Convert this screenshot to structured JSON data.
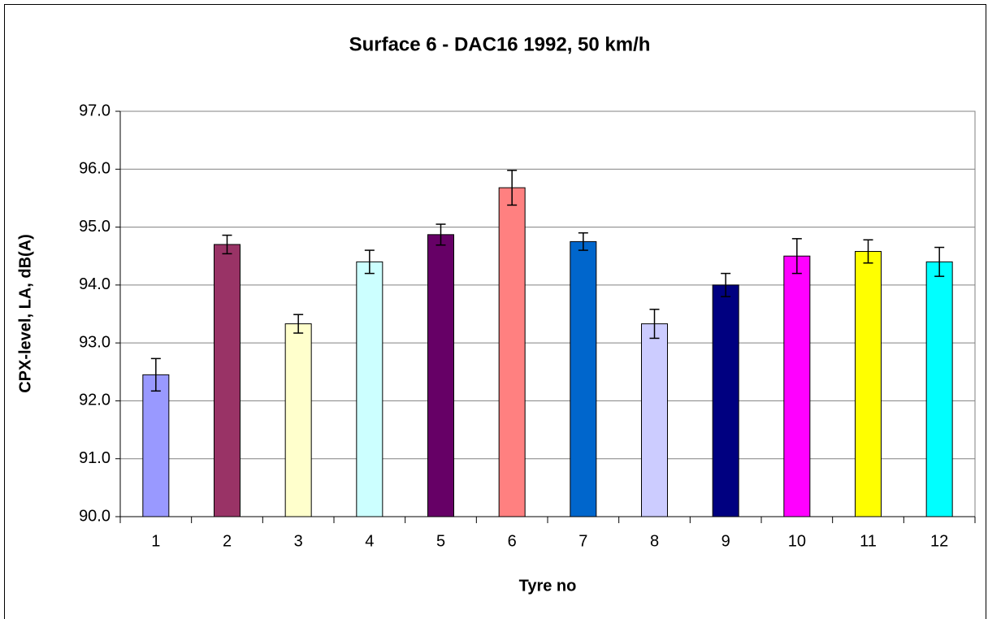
{
  "chart_data": {
    "type": "bar",
    "title": "Surface 6 -  DAC16 1992, 50 km/h",
    "xlabel": "Tyre no",
    "ylabel": "CPX-level, LA, dB(A)",
    "categories": [
      "1",
      "2",
      "3",
      "4",
      "5",
      "6",
      "7",
      "8",
      "9",
      "10",
      "11",
      "12"
    ],
    "values": [
      92.45,
      94.7,
      93.33,
      94.4,
      94.87,
      95.68,
      94.75,
      93.33,
      94.0,
      94.5,
      94.58,
      94.4
    ],
    "errors": [
      0.28,
      0.16,
      0.16,
      0.2,
      0.18,
      0.3,
      0.15,
      0.25,
      0.2,
      0.3,
      0.2,
      0.25
    ],
    "colors": [
      "#9999ff",
      "#993366",
      "#ffffcc",
      "#ccffff",
      "#660066",
      "#ff8080",
      "#0066cc",
      "#ccccff",
      "#000080",
      "#ff00ff",
      "#ffff00",
      "#00ffff"
    ],
    "ylim": [
      90,
      97
    ],
    "yticks": [
      {
        "value": 90,
        "label": "90.0"
      },
      {
        "value": 91,
        "label": "91.0"
      },
      {
        "value": 92,
        "label": "92.0"
      },
      {
        "value": 93,
        "label": "93.0"
      },
      {
        "value": 94,
        "label": "94.0"
      },
      {
        "value": 95,
        "label": "95.0"
      },
      {
        "value": 96,
        "label": "96.0"
      },
      {
        "value": 97,
        "label": "97.0"
      }
    ],
    "grid": true
  }
}
